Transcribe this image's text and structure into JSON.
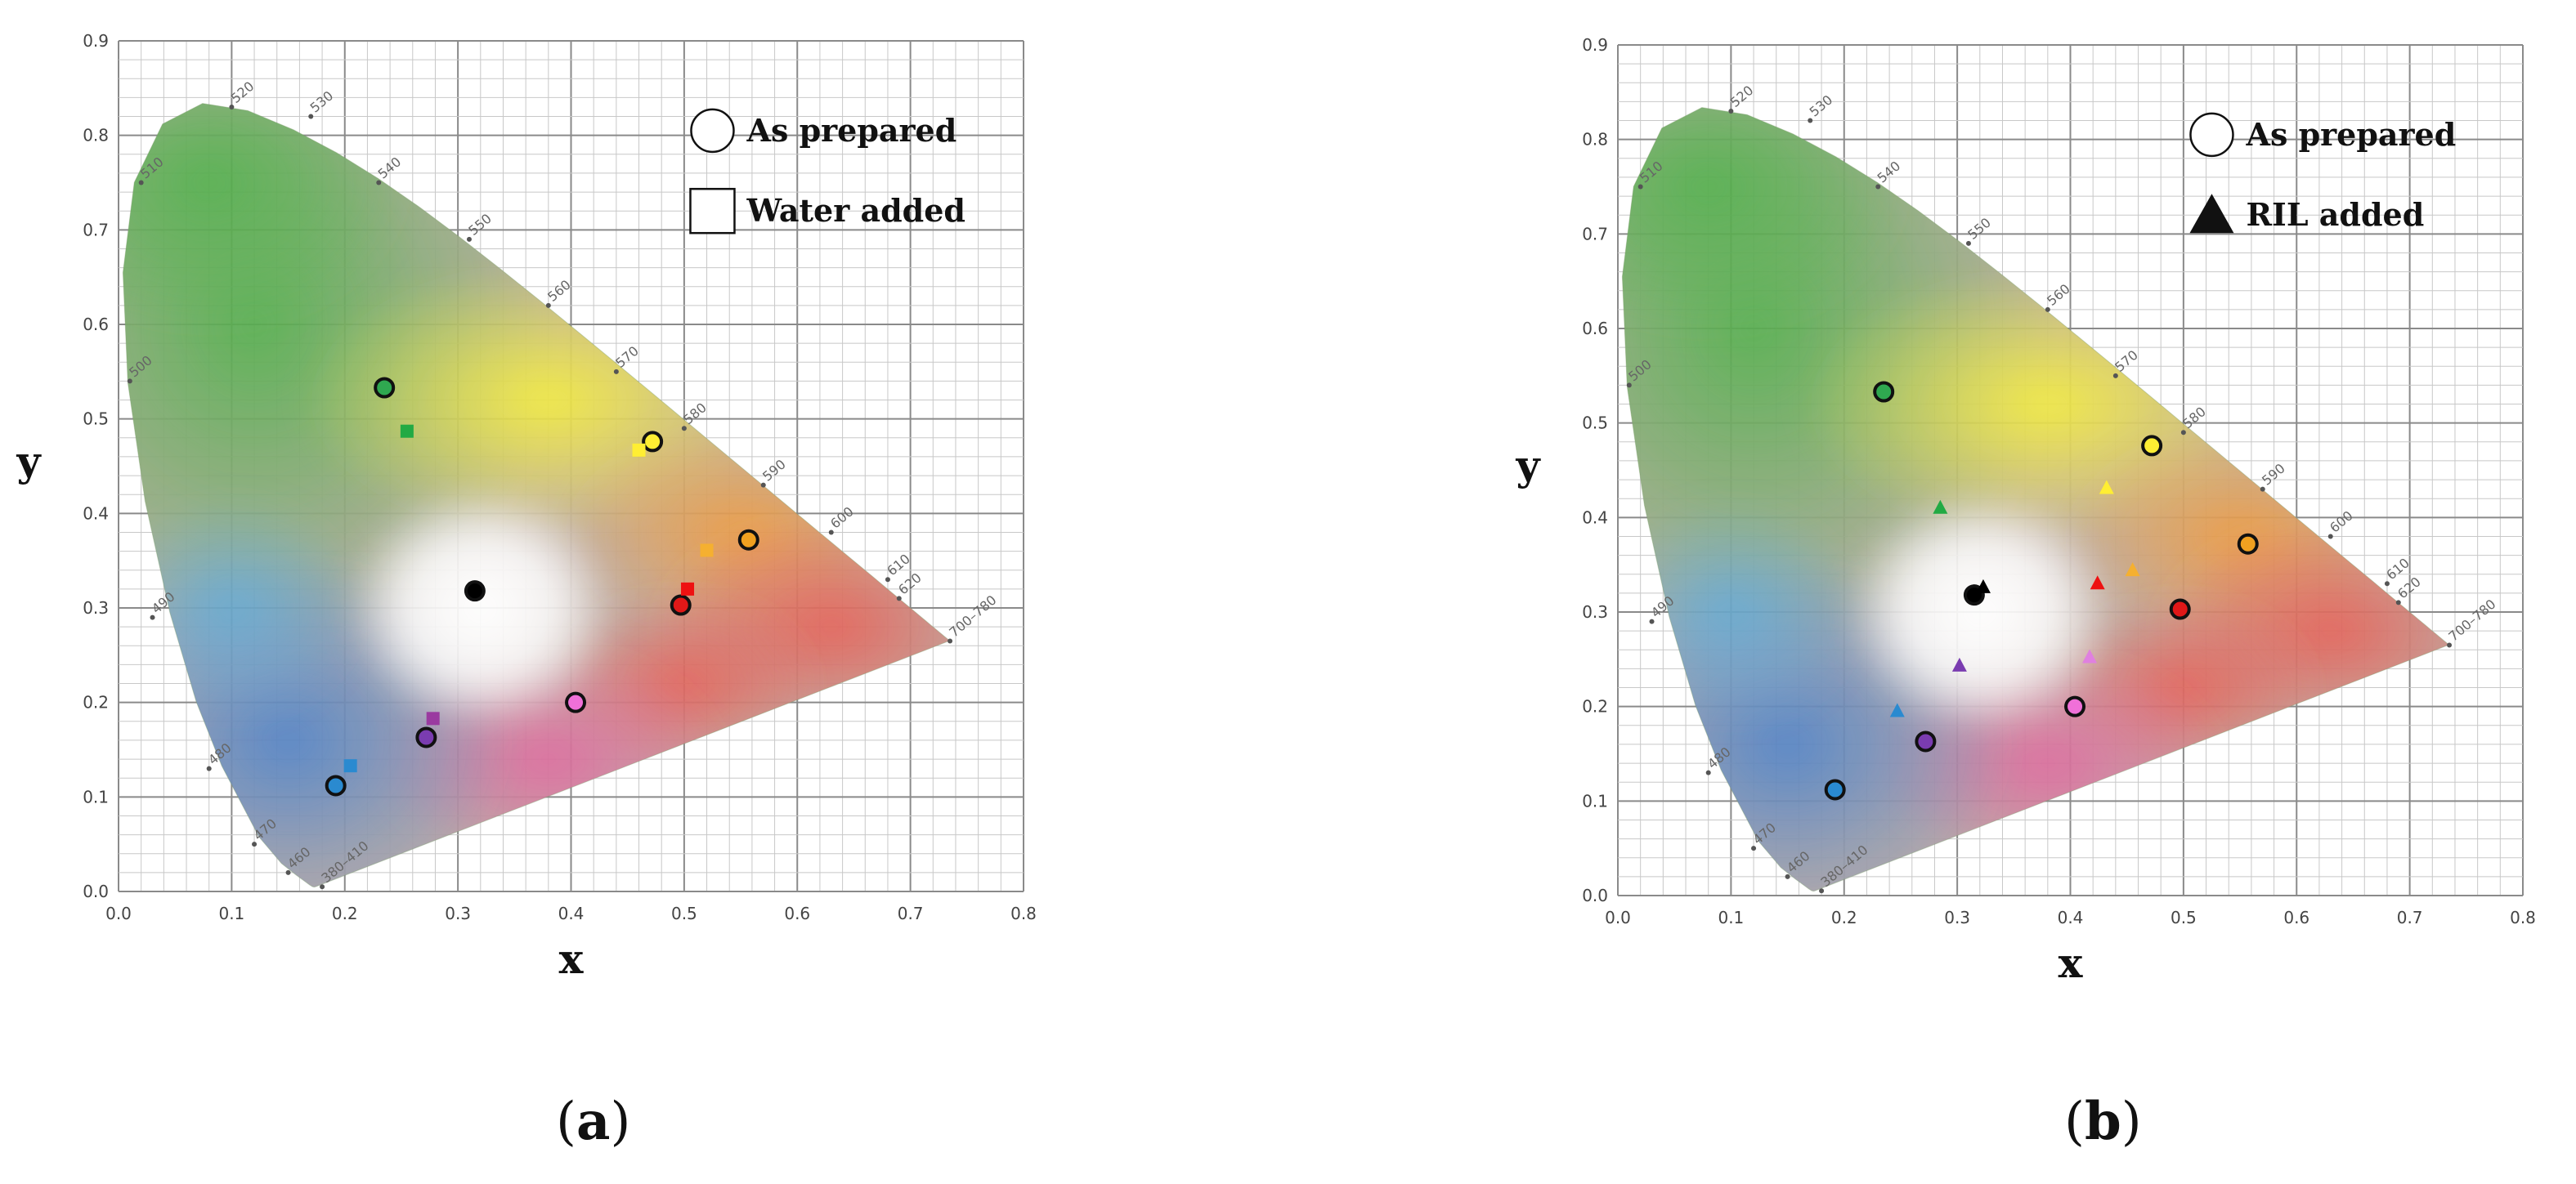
{
  "chart_data": [
    {
      "type": "scatter",
      "xlabel": "x",
      "ylabel": "y",
      "xlim": [
        0.0,
        0.8
      ],
      "ylim": [
        0.0,
        0.9
      ],
      "xticks": [
        "0.0",
        "0.1",
        "0.2",
        "0.3",
        "0.4",
        "0.5",
        "0.6",
        "0.7",
        "0.8"
      ],
      "yticks": [
        "0.0",
        "0.1",
        "0.2",
        "0.3",
        "0.4",
        "0.5",
        "0.6",
        "0.7",
        "0.8",
        "0.9"
      ],
      "grid": true,
      "legend_position": "top-right",
      "legend": [
        {
          "marker": "circle-open",
          "label": "As prepared"
        },
        {
          "marker": "square-open",
          "label": "Water added"
        }
      ],
      "wavelength_labels": [
        {
          "text": "520",
          "x": 0.1,
          "y": 0.83
        },
        {
          "text": "530",
          "x": 0.17,
          "y": 0.82
        },
        {
          "text": "540",
          "x": 0.23,
          "y": 0.75
        },
        {
          "text": "550",
          "x": 0.31,
          "y": 0.69
        },
        {
          "text": "560",
          "x": 0.38,
          "y": 0.62
        },
        {
          "text": "570",
          "x": 0.44,
          "y": 0.55
        },
        {
          "text": "580",
          "x": 0.5,
          "y": 0.49
        },
        {
          "text": "590",
          "x": 0.57,
          "y": 0.43
        },
        {
          "text": "600",
          "x": 0.63,
          "y": 0.38
        },
        {
          "text": "610",
          "x": 0.68,
          "y": 0.33
        },
        {
          "text": "620",
          "x": 0.69,
          "y": 0.31
        },
        {
          "text": "700–780",
          "x": 0.735,
          "y": 0.265
        },
        {
          "text": "510",
          "x": 0.02,
          "y": 0.75
        },
        {
          "text": "500",
          "x": 0.01,
          "y": 0.54
        },
        {
          "text": "490",
          "x": 0.03,
          "y": 0.29
        },
        {
          "text": "480",
          "x": 0.08,
          "y": 0.13
        },
        {
          "text": "470",
          "x": 0.12,
          "y": 0.05
        },
        {
          "text": "460",
          "x": 0.15,
          "y": 0.02
        },
        {
          "text": "380–410",
          "x": 0.18,
          "y": 0.005
        }
      ],
      "series": [
        {
          "name": "As prepared",
          "marker": "circle",
          "points": [
            {
              "x": 0.235,
              "y": 0.533,
              "color": "#2fa850"
            },
            {
              "x": 0.315,
              "y": 0.318,
              "color": "#000000"
            },
            {
              "x": 0.472,
              "y": 0.476,
              "color": "#ffee33"
            },
            {
              "x": 0.557,
              "y": 0.372,
              "color": "#f0a020"
            },
            {
              "x": 0.497,
              "y": 0.303,
              "color": "#e01818"
            },
            {
              "x": 0.404,
              "y": 0.2,
              "color": "#f070d8"
            },
            {
              "x": 0.272,
              "y": 0.163,
              "color": "#7a3cb0"
            },
            {
              "x": 0.192,
              "y": 0.112,
              "color": "#2a8ad0"
            }
          ]
        },
        {
          "name": "Water added",
          "marker": "square",
          "points": [
            {
              "x": 0.255,
              "y": 0.487,
              "color": "#22aa44"
            },
            {
              "x": 0.46,
              "y": 0.467,
              "color": "#ffee33"
            },
            {
              "x": 0.52,
              "y": 0.361,
              "color": "#f5b030"
            },
            {
              "x": 0.503,
              "y": 0.32,
              "color": "#ee1111"
            },
            {
              "x": 0.278,
              "y": 0.183,
              "color": "#9a3aa0"
            },
            {
              "x": 0.205,
              "y": 0.133,
              "color": "#2a8ad0"
            }
          ]
        }
      ]
    },
    {
      "type": "scatter",
      "xlabel": "x",
      "ylabel": "y",
      "xlim": [
        0.0,
        0.8
      ],
      "ylim": [
        0.0,
        0.9
      ],
      "xticks": [
        "0.0",
        "0.1",
        "0.2",
        "0.3",
        "0.4",
        "0.5",
        "0.6",
        "0.7",
        "0.8"
      ],
      "yticks": [
        "0.0",
        "0.1",
        "0.2",
        "0.3",
        "0.4",
        "0.5",
        "0.6",
        "0.7",
        "0.8",
        "0.9"
      ],
      "grid": true,
      "legend_position": "top-right",
      "legend": [
        {
          "marker": "circle-open",
          "label": "As prepared"
        },
        {
          "marker": "triangle-filled",
          "label": "RIL added"
        }
      ],
      "wavelength_labels": [
        {
          "text": "520",
          "x": 0.1,
          "y": 0.83
        },
        {
          "text": "530",
          "x": 0.17,
          "y": 0.82
        },
        {
          "text": "540",
          "x": 0.23,
          "y": 0.75
        },
        {
          "text": "550",
          "x": 0.31,
          "y": 0.69
        },
        {
          "text": "560",
          "x": 0.38,
          "y": 0.62
        },
        {
          "text": "570",
          "x": 0.44,
          "y": 0.55
        },
        {
          "text": "580",
          "x": 0.5,
          "y": 0.49
        },
        {
          "text": "590",
          "x": 0.57,
          "y": 0.43
        },
        {
          "text": "600",
          "x": 0.63,
          "y": 0.38
        },
        {
          "text": "610",
          "x": 0.68,
          "y": 0.33
        },
        {
          "text": "620",
          "x": 0.69,
          "y": 0.31
        },
        {
          "text": "700–780",
          "x": 0.735,
          "y": 0.265
        },
        {
          "text": "510",
          "x": 0.02,
          "y": 0.75
        },
        {
          "text": "500",
          "x": 0.01,
          "y": 0.54
        },
        {
          "text": "490",
          "x": 0.03,
          "y": 0.29
        },
        {
          "text": "480",
          "x": 0.08,
          "y": 0.13
        },
        {
          "text": "470",
          "x": 0.12,
          "y": 0.05
        },
        {
          "text": "460",
          "x": 0.15,
          "y": 0.02
        },
        {
          "text": "380–410",
          "x": 0.18,
          "y": 0.005
        }
      ],
      "series": [
        {
          "name": "As prepared",
          "marker": "circle",
          "points": [
            {
              "x": 0.235,
              "y": 0.533,
              "color": "#2fa850"
            },
            {
              "x": 0.315,
              "y": 0.318,
              "color": "#000000"
            },
            {
              "x": 0.472,
              "y": 0.476,
              "color": "#ffee33"
            },
            {
              "x": 0.557,
              "y": 0.372,
              "color": "#f0a020"
            },
            {
              "x": 0.497,
              "y": 0.303,
              "color": "#e01818"
            },
            {
              "x": 0.404,
              "y": 0.2,
              "color": "#f070d8"
            },
            {
              "x": 0.272,
              "y": 0.163,
              "color": "#7a3cb0"
            },
            {
              "x": 0.192,
              "y": 0.112,
              "color": "#2a8ad0"
            }
          ]
        },
        {
          "name": "RIL added",
          "marker": "triangle",
          "points": [
            {
              "x": 0.285,
              "y": 0.41,
              "color": "#22aa44"
            },
            {
              "x": 0.323,
              "y": 0.326,
              "color": "#000000"
            },
            {
              "x": 0.432,
              "y": 0.431,
              "color": "#ffee33"
            },
            {
              "x": 0.455,
              "y": 0.344,
              "color": "#f5b030"
            },
            {
              "x": 0.424,
              "y": 0.33,
              "color": "#ee1111"
            },
            {
              "x": 0.417,
              "y": 0.252,
              "color": "#e080e0"
            },
            {
              "x": 0.302,
              "y": 0.243,
              "color": "#7a3cb0"
            },
            {
              "x": 0.247,
              "y": 0.195,
              "color": "#2a8ad0"
            }
          ]
        }
      ]
    }
  ],
  "panels": [
    {
      "label_open": "(",
      "label_letter": "a",
      "label_close": ")"
    },
    {
      "label_open": "(",
      "label_letter": "b",
      "label_close": ")"
    }
  ]
}
